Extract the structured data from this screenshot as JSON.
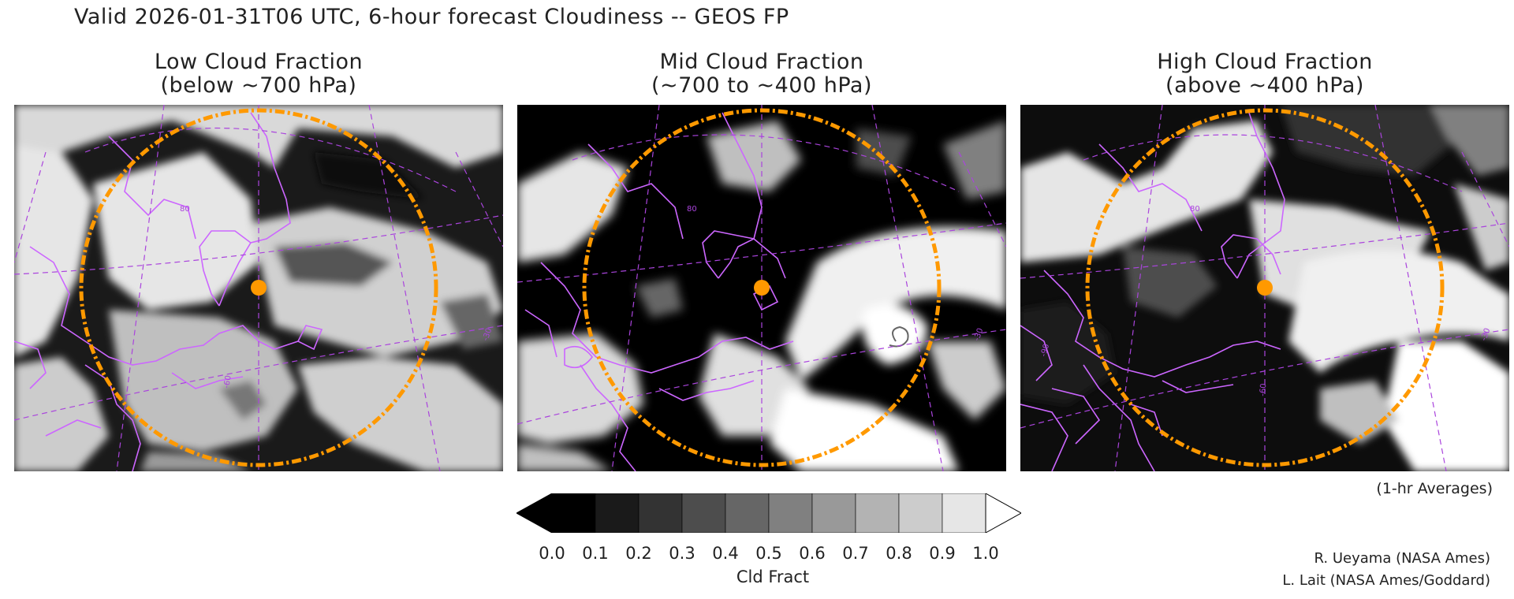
{
  "title": "Valid 2026-01-31T06 UTC, 6-hour forecast Cloudiness -- GEOS FP",
  "panels": [
    {
      "id": "low",
      "title_line1": "Low Cloud Fraction",
      "title_line2": "(below ~700 hPa)"
    },
    {
      "id": "mid",
      "title_line1": "Mid Cloud Fraction",
      "title_line2": "(~700 to ~400 hPa)"
    },
    {
      "id": "high",
      "title_line1": "High Cloud Fraction",
      "title_line2": "(above ~400 hPa)"
    }
  ],
  "map_labels": {
    "lat_80": "80",
    "lon_60": "-60",
    "lon_30": "-30",
    "lon_90": "-90"
  },
  "colorbar": {
    "label": "Cld Fract",
    "ticks": [
      "0.0",
      "0.1",
      "0.2",
      "0.3",
      "0.4",
      "0.5",
      "0.6",
      "0.7",
      "0.8",
      "0.9",
      "1.0"
    ],
    "colors": [
      "#000000",
      "#1a1a1a",
      "#333333",
      "#4d4d4d",
      "#666666",
      "#808080",
      "#999999",
      "#b3b3b3",
      "#cccccc",
      "#e6e6e6"
    ],
    "under_color": "#000000",
    "over_color": "#ffffff"
  },
  "note": "(1-hr Averages)",
  "credits": [
    "R. Ueyama (NASA Ames)",
    "L. Lait (NASA Ames/Goddard)"
  ],
  "colors": {
    "coastline": "#cc66ff",
    "range_ring": "#ff9900",
    "site_marker": "#ff9900"
  }
}
